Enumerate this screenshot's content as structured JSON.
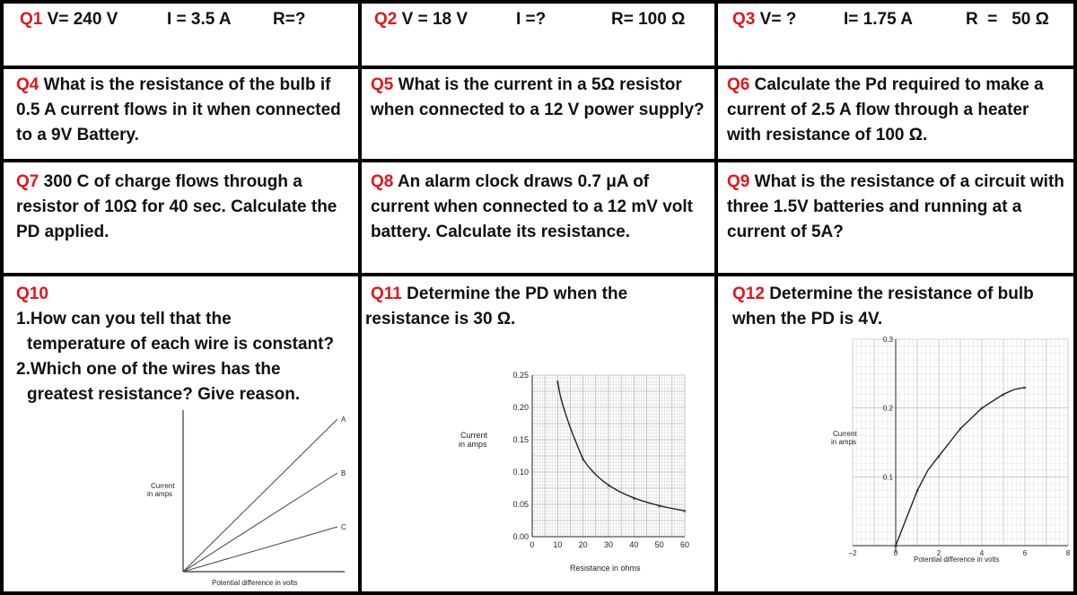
{
  "q1": {
    "num": "Q1",
    "v": "V= 240 V",
    "i": "I = 3.5 A",
    "r": "R=?"
  },
  "q2": {
    "num": "Q2",
    "v": "V = 18 V",
    "i": "I =?",
    "r": "R= 100 Ω"
  },
  "q3": {
    "num": "Q3",
    "v": "V= ?",
    "i": "I= 1.75 A",
    "r": "R  =   50 Ω"
  },
  "q4": {
    "num": "Q4",
    "text": "What is the resistance of the bulb if 0.5 A current flows in it when connected to a 9V Battery."
  },
  "q5": {
    "num": "Q5",
    "text": "What is the current in a 5Ω resistor when connected to a 12 V power supply?"
  },
  "q6": {
    "num": "Q6",
    "text": "Calculate the Pd required to make a current of 2.5 A flow through a heater with resistance of 100 Ω."
  },
  "q7": {
    "num": "Q7",
    "text": "300 C of charge flows through a resistor of 10Ω for 40 sec. Calculate the PD applied."
  },
  "q8": {
    "num": "Q8",
    "text": "An alarm clock draws 0.7 μA of current when connected to a 12 mV volt battery. Calculate its resistance."
  },
  "q9": {
    "num": "Q9",
    "text": "What is the resistance of a circuit with three 1.5V batteries and running at a current of 5A?"
  },
  "q10": {
    "num": "Q10",
    "line1": "1.How can you tell that the",
    "line2": "temperature of each wire is constant?",
    "line3": "2.Which one of the wires has the",
    "line4": "greatest resistance? Give reason.",
    "graph": {
      "ylabel1": "Current",
      "ylabel2": "in amps",
      "xlabel": "Potential difference in volts",
      "lines": [
        "A",
        "B",
        "C"
      ]
    }
  },
  "q11": {
    "num": "Q11",
    "line1": "Determine the PD  when the",
    "line2": "resistance is  30 Ω.",
    "graph": {
      "ylabel1": "Current",
      "ylabel2": "in amps",
      "xlabel": "Resistance in ohms",
      "yticks": [
        "0.00",
        "0.05",
        "0.10",
        "0.15",
        "0.20",
        "0.25"
      ],
      "xticks": [
        "0",
        "10",
        "20",
        "30",
        "40",
        "50",
        "60"
      ]
    }
  },
  "q12": {
    "num": "Q12",
    "line1": "Determine the resistance of bulb",
    "line2": "when the PD is 4V.",
    "graph": {
      "ylabel1": "Current",
      "ylabel2": "in amps",
      "xlabel": "Potential difference in volts",
      "yticks": [
        "0.1",
        "0.2",
        "0.3"
      ],
      "xticks": [
        "−2",
        "0",
        "2",
        "4",
        "6",
        "8"
      ]
    }
  },
  "chart_data": [
    {
      "type": "line",
      "xlabel": "Potential difference in volts",
      "ylabel": "Current in amps",
      "series": [
        {
          "name": "A",
          "x": [
            0,
            1
          ],
          "y": [
            0,
            0.85
          ]
        },
        {
          "name": "B",
          "x": [
            0,
            1
          ],
          "y": [
            0,
            0.55
          ]
        },
        {
          "name": "C",
          "x": [
            0,
            1
          ],
          "y": [
            0,
            0.25
          ]
        }
      ]
    },
    {
      "type": "line",
      "xlabel": "Resistance in ohms",
      "ylabel": "Current in amps",
      "xlim": [
        0,
        60
      ],
      "ylim": [
        0,
        0.25
      ],
      "series": [
        {
          "x": [
            10,
            20,
            30,
            40,
            50,
            60
          ],
          "y": [
            0.24,
            0.12,
            0.08,
            0.06,
            0.048,
            0.04
          ]
        }
      ]
    },
    {
      "type": "line",
      "xlabel": "Potential difference in volts",
      "ylabel": "Current in amps",
      "xlim": [
        -2,
        8
      ],
      "ylim": [
        0,
        0.3
      ],
      "series": [
        {
          "x": [
            0,
            0.5,
            1,
            1.5,
            2,
            2.5,
            3,
            3.5,
            4,
            4.5,
            5,
            5.5,
            6
          ],
          "y": [
            0,
            0.04,
            0.08,
            0.11,
            0.13,
            0.15,
            0.17,
            0.185,
            0.2,
            0.21,
            0.22,
            0.227,
            0.23
          ]
        }
      ]
    }
  ]
}
